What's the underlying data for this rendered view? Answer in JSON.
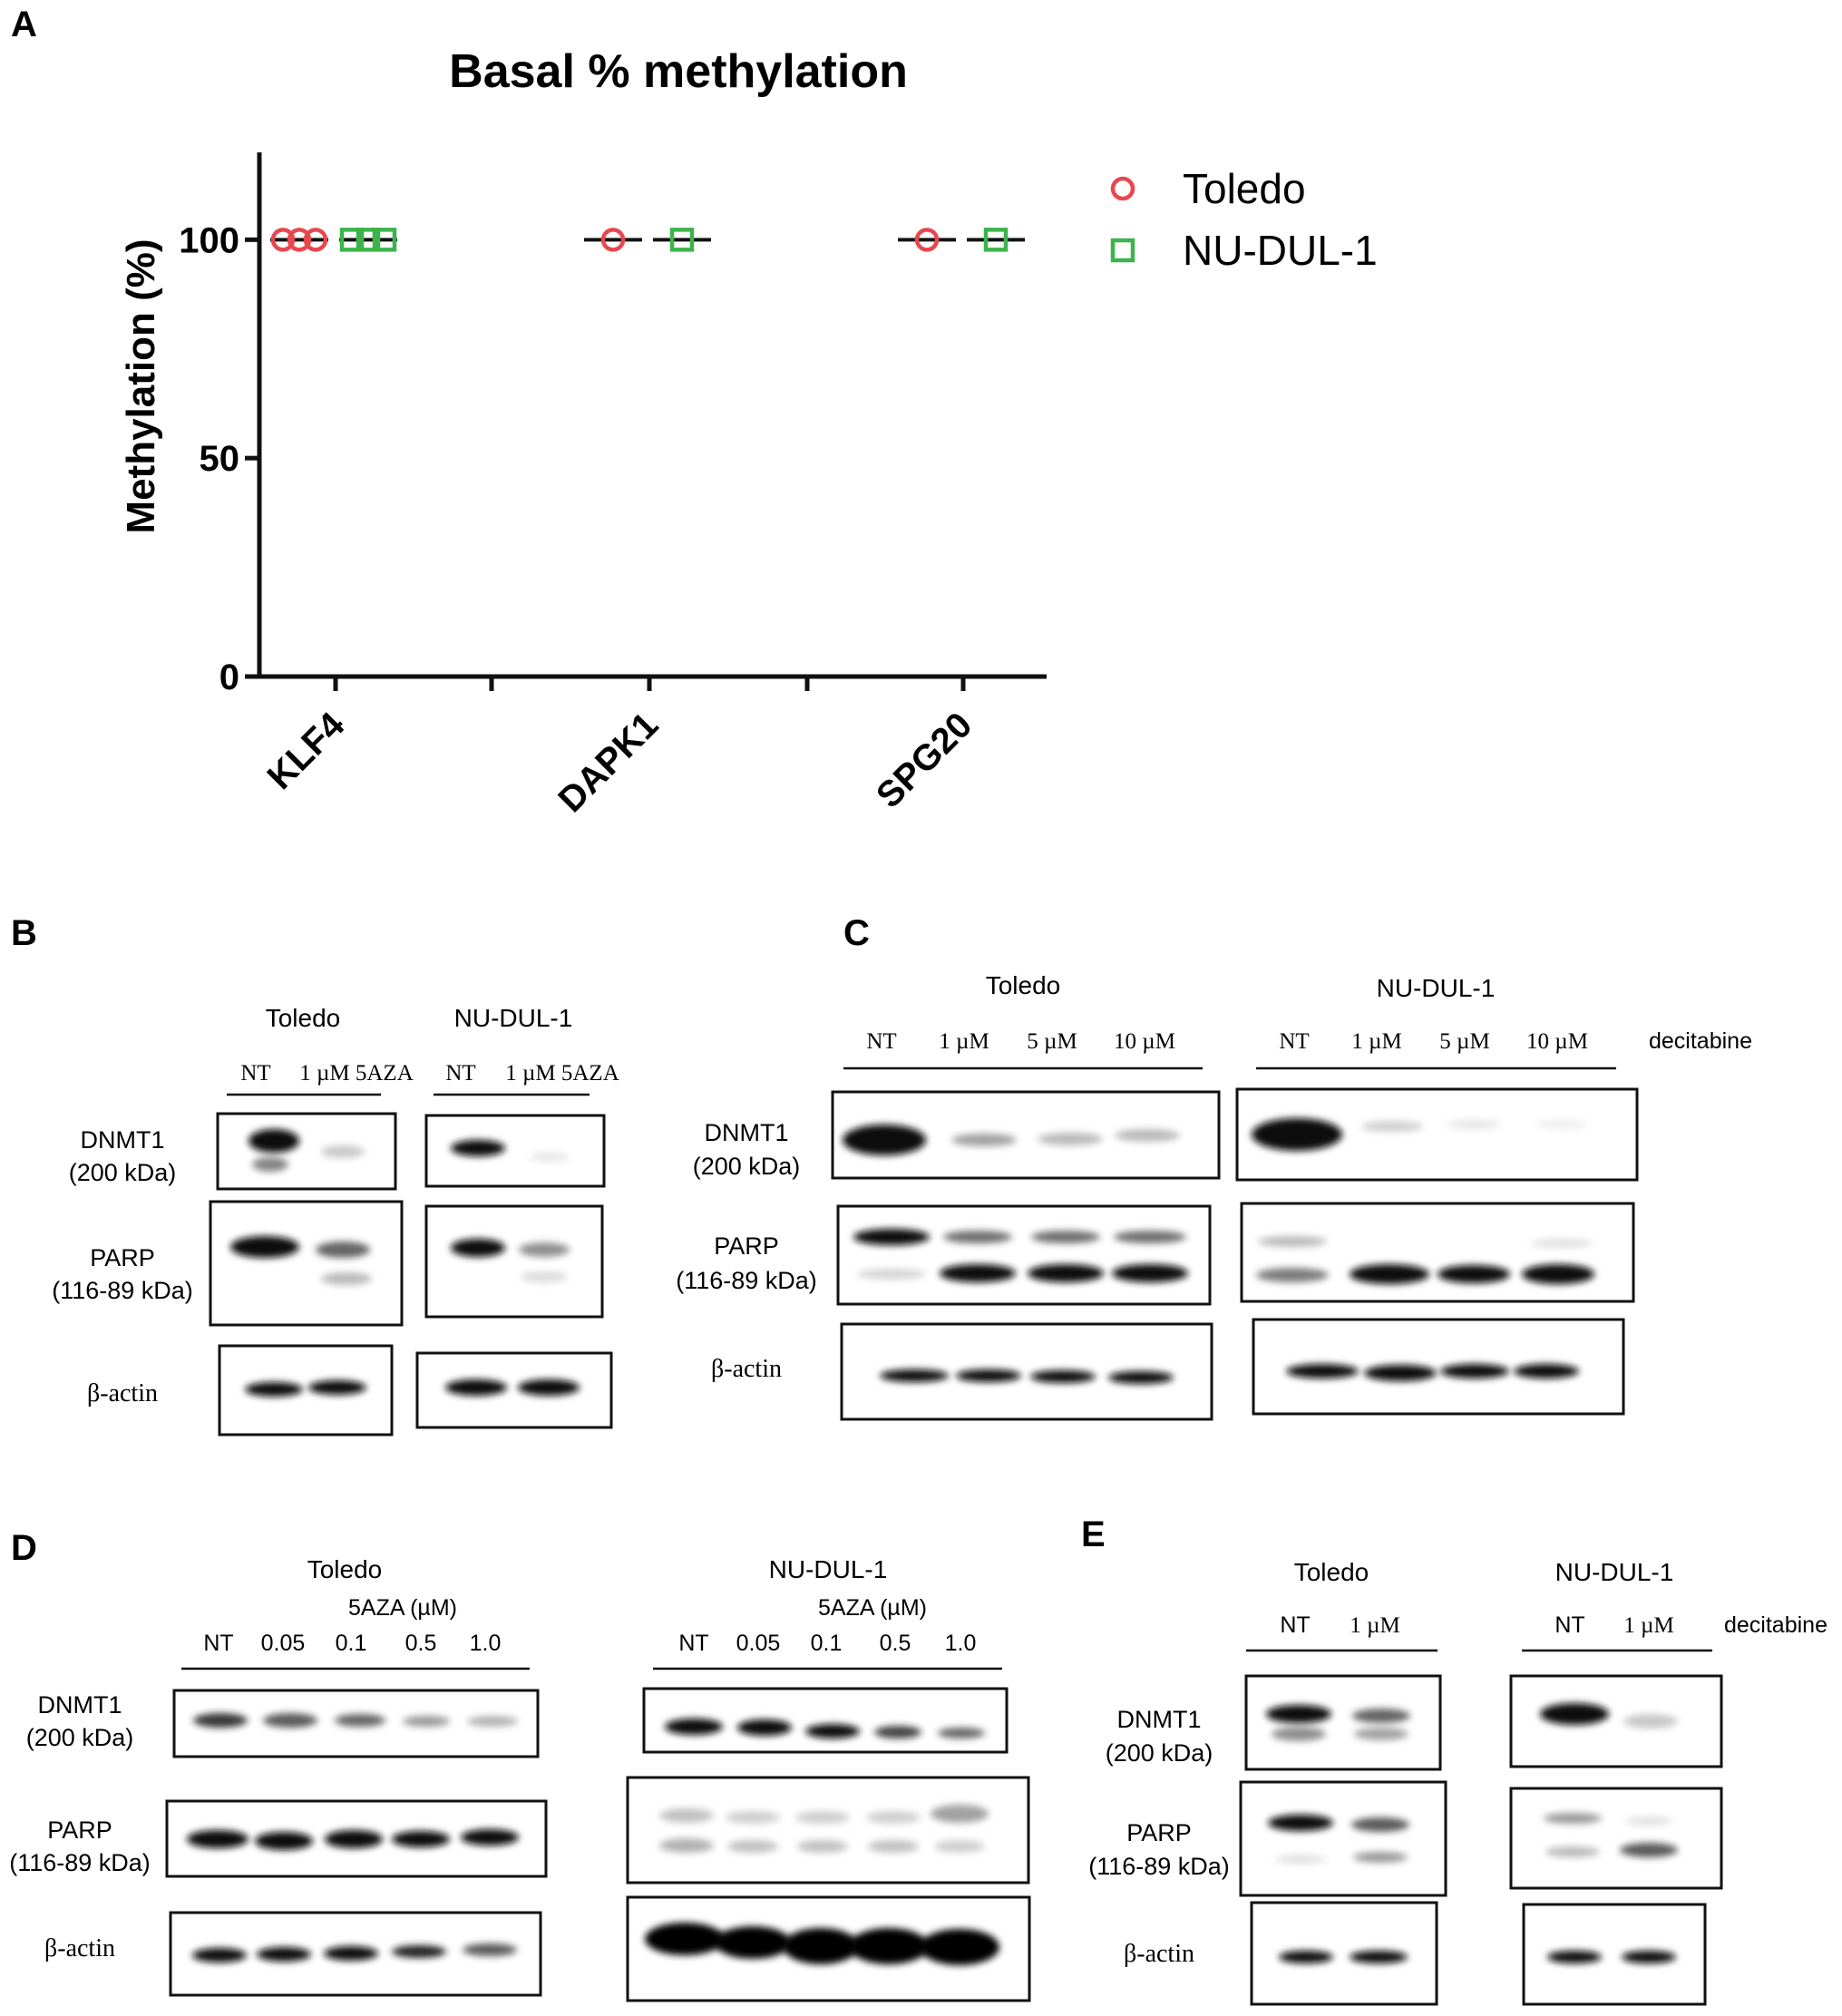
{
  "panel_letters": {
    "a": "A",
    "b": "B",
    "c": "C",
    "d": "D",
    "e": "E"
  },
  "chart_data": {
    "type": "scatter",
    "title": "Basal % methylation",
    "ylabel": "Methylation (%)",
    "xlabel": "",
    "categories": [
      "KLF4",
      "DAPK1",
      "SPG20"
    ],
    "ylim": [
      0,
      120
    ],
    "yticks": [
      0,
      50,
      100
    ],
    "legend_position": "top-right",
    "grid": false,
    "series": [
      {
        "name": "Toledo",
        "marker": "circle",
        "color": "#e8474f",
        "points": [
          [
            100,
            100,
            100
          ],
          [
            100
          ],
          [
            100
          ]
        ]
      },
      {
        "name": "NU-DUL-1",
        "marker": "square",
        "color": "#3db34a",
        "points": [
          [
            100,
            100,
            100
          ],
          [
            100
          ],
          [
            100
          ]
        ]
      }
    ],
    "medians": [
      [
        100,
        100
      ],
      [
        100,
        100
      ],
      [
        100,
        100
      ]
    ]
  },
  "blots": {
    "b": {
      "groups": [
        {
          "title": "Toledo",
          "lanes": [
            "NT",
            "1 µM 5AZA"
          ]
        },
        {
          "title": "NU-DUL-1",
          "lanes": [
            "NT",
            "1 µM 5AZA"
          ]
        }
      ],
      "rows": [
        {
          "label1": "DNMT1",
          "label2": "(200 kDa)"
        },
        {
          "label1": "PARP",
          "label2": "(116-89 kDa)"
        },
        {
          "label1": "β-actin",
          "label2": ""
        }
      ]
    },
    "c": {
      "groups": [
        {
          "title": "Toledo",
          "lanes": [
            "NT",
            "1 µM",
            "5 µM",
            "10 µM"
          ]
        },
        {
          "title": "NU-DUL-1",
          "lanes": [
            "NT",
            "1 µM",
            "5 µM",
            "10 µM"
          ]
        }
      ],
      "treatment": "decitabine",
      "rows": [
        {
          "label1": "DNMT1",
          "label2": "(200 kDa)"
        },
        {
          "label1": "PARP",
          "label2": "(116-89 kDa)"
        },
        {
          "label1": "β-actin",
          "label2": ""
        }
      ]
    },
    "d": {
      "groups": [
        {
          "title": "Toledo",
          "subtitle": "5AZA (µM)",
          "lanes": [
            "NT",
            "0.05",
            "0.1",
            "0.5",
            "1.0"
          ]
        },
        {
          "title": "NU-DUL-1",
          "subtitle": "5AZA (µM)",
          "lanes": [
            "NT",
            "0.05",
            "0.1",
            "0.5",
            "1.0"
          ]
        }
      ],
      "rows": [
        {
          "label1": "DNMT1",
          "label2": "(200 kDa)"
        },
        {
          "label1": "PARP",
          "label2": "(116-89 kDa)"
        },
        {
          "label1": "β-actin",
          "label2": ""
        }
      ]
    },
    "e": {
      "groups": [
        {
          "title": "Toledo",
          "lanes": [
            "NT",
            "1 µM"
          ]
        },
        {
          "title": "NU-DUL-1",
          "lanes": [
            "NT",
            "1 µM"
          ]
        }
      ],
      "treatment": "decitabine",
      "rows": [
        {
          "label1": "DNMT1",
          "label2": "(200 kDa)"
        },
        {
          "label1": "PARP",
          "label2": "(116-89 kDa)"
        },
        {
          "label1": "β-actin",
          "label2": ""
        }
      ]
    }
  }
}
